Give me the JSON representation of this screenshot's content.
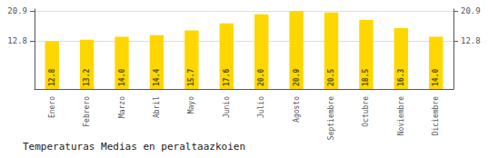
{
  "chart_data": {
    "type": "bar",
    "title": "Temperaturas Medias en peraltaazkoien",
    "categories": [
      "Enero",
      "Febrero",
      "Marzo",
      "Abril",
      "Mayo",
      "Junio",
      "Julio",
      "Agosto",
      "Septiembre",
      "Octubre",
      "Noviembre",
      "Diciembre"
    ],
    "values": [
      12.8,
      13.2,
      14.0,
      14.4,
      15.7,
      17.6,
      20.0,
      20.9,
      20.5,
      18.5,
      16.3,
      14.0
    ],
    "value_labels": [
      "12.8",
      "13.2",
      "14.0",
      "14.4",
      "15.7",
      "17.6",
      "20.0",
      "20.9",
      "20.5",
      "18.5",
      "16.3",
      "14.0"
    ],
    "data_labels": true,
    "color": "#FFD700",
    "ylim": [
      0,
      21.4
    ],
    "yticks": [
      12.8,
      20.9
    ],
    "y2lim": [
      0,
      21.4
    ],
    "y2ticks": [
      12.8,
      20.9
    ],
    "grid": true
  }
}
